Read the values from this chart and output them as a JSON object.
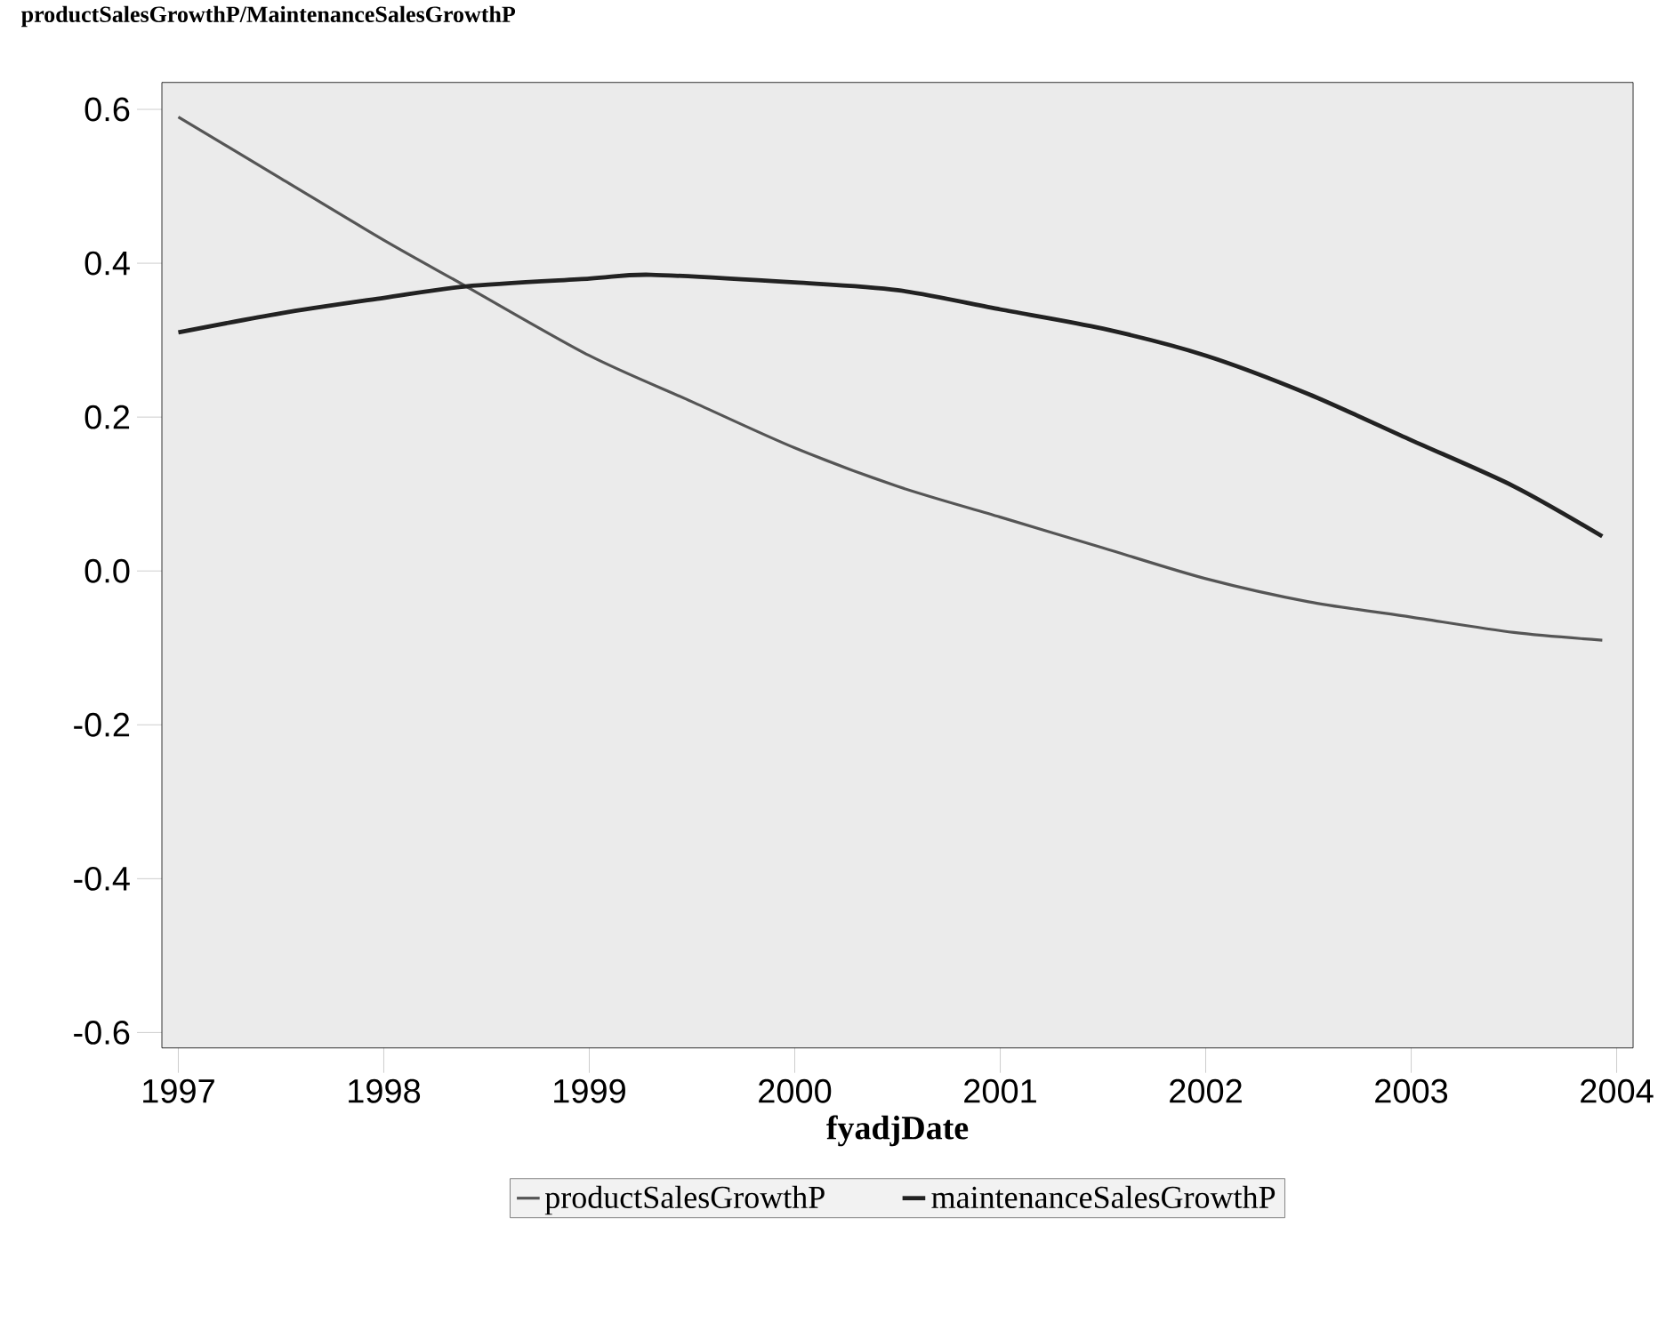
{
  "chart_data": {
    "type": "line",
    "title": "productSalesGrowthP/MaintenanceSalesGrowthP",
    "xlabel": "fyadjDate",
    "xlim": [
      1996.92,
      2004.08
    ],
    "xticks": [
      1997,
      1998,
      1999,
      2000,
      2001,
      2002,
      2003,
      2004
    ],
    "ylim": [
      -0.62,
      0.635
    ],
    "yticks": [
      {
        "value": -0.6,
        "label": "-0.6"
      },
      {
        "value": -0.4,
        "label": "-0.4"
      },
      {
        "value": -0.2,
        "label": "-0.2"
      },
      {
        "value": 0,
        "label": "0.0"
      },
      {
        "value": 0.2,
        "label": "0.2"
      },
      {
        "value": 0.4,
        "label": "0.4"
      },
      {
        "value": 0.6,
        "label": "0.6"
      }
    ],
    "legend": "bottom",
    "line_style": "solid",
    "series": [
      {
        "name": "productSalesGrowthP",
        "color": "#555555",
        "x": [
          1997.0,
          1997.5,
          1998.0,
          1998.4,
          1999.0,
          1999.5,
          2000.0,
          2000.5,
          2001.0,
          2001.5,
          2002.0,
          2002.5,
          2003.0,
          2003.5,
          2003.93
        ],
        "values": [
          0.59,
          0.51,
          0.43,
          0.37,
          0.28,
          0.22,
          0.16,
          0.11,
          0.07,
          0.03,
          -0.01,
          -0.04,
          -0.06,
          -0.08,
          -0.09
        ]
      },
      {
        "name": "maintenanceSalesGrowthP",
        "color": "#222222",
        "x": [
          1997.0,
          1997.5,
          1998.0,
          1998.4,
          1999.0,
          1999.3,
          2000.0,
          2000.5,
          2001.0,
          2001.5,
          2002.0,
          2002.5,
          2003.0,
          2003.5,
          2003.93
        ],
        "values": [
          0.31,
          0.335,
          0.355,
          0.37,
          0.38,
          0.385,
          0.375,
          0.365,
          0.34,
          0.315,
          0.28,
          0.23,
          0.17,
          0.11,
          0.045
        ]
      }
    ]
  }
}
